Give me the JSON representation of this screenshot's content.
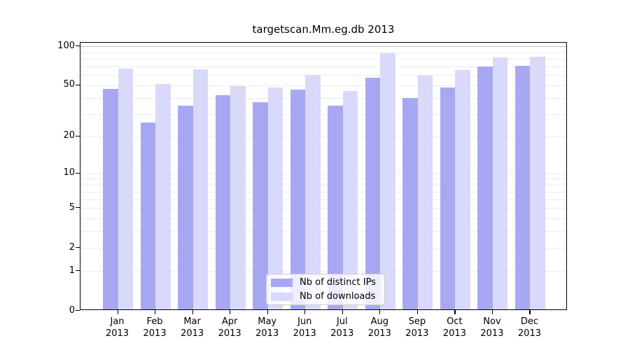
{
  "chart_data": {
    "type": "bar",
    "title": "targetscan.Mm.eg.db 2013",
    "categories": [
      "Jan",
      "Feb",
      "Mar",
      "Apr",
      "May",
      "Jun",
      "Jul",
      "Aug",
      "Sep",
      "Oct",
      "Nov",
      "Dec"
    ],
    "year": "2013",
    "series": [
      {
        "name": "Nb of distinct IPs",
        "color": "#a8a8f2",
        "values": [
          46,
          25,
          34,
          41,
          36,
          45,
          34,
          56,
          39,
          47,
          68,
          69
        ]
      },
      {
        "name": "Nb of downloads",
        "color": "#d9d9f9",
        "values": [
          66,
          50,
          65,
          48,
          47,
          59,
          44,
          86,
          58,
          64,
          80,
          81
        ]
      }
    ],
    "y_scale": "log1p",
    "y_ticks": [
      100,
      50,
      20,
      10,
      5,
      2,
      1,
      0
    ],
    "ylim": [
      0,
      105
    ],
    "gridlines": {
      "minor": [
        1,
        2,
        3,
        4,
        5,
        6,
        7,
        8,
        9,
        10,
        20,
        30,
        40,
        50,
        60,
        70,
        80,
        90
      ],
      "major": [
        100
      ]
    },
    "legend_position": "lower center",
    "grid": "on"
  },
  "colors": {
    "gridline_minor": "#ececec",
    "gridline_major": "#bdbdbd",
    "axis": "#000000",
    "background": "#ffffff",
    "legend_border": "#cccccc"
  }
}
